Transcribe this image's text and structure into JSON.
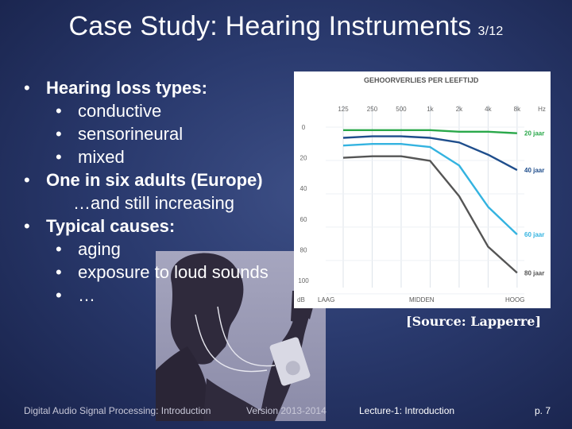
{
  "slide": {
    "title": "Case Study: Hearing Instruments",
    "slide_number": "3/12",
    "bullets": [
      {
        "level": 1,
        "text": "Hearing loss types:",
        "bold": true
      },
      {
        "level": 2,
        "text": "conductive"
      },
      {
        "level": 2,
        "text": "sensorineural"
      },
      {
        "level": 2,
        "text": "mixed"
      },
      {
        "level": 1,
        "text": "One in six adults (Europe)",
        "bold": true
      },
      {
        "level": 3,
        "text": "…and still increasing"
      },
      {
        "level": 1,
        "text": "Typical causes:",
        "bold": true
      },
      {
        "level": 2,
        "text": "aging"
      },
      {
        "level": 2,
        "text": "exposure to loud sounds"
      },
      {
        "level": 2,
        "text": "…"
      }
    ],
    "source": "[Source: Lapperre]"
  },
  "chart_data": {
    "type": "line",
    "title": "GEHOORVERLIES PER LEEFTIJD",
    "x": [
      125,
      250,
      500,
      1000,
      2000,
      4000,
      8000
    ],
    "x_tick_labels": [
      "125",
      "250",
      "500",
      "1k",
      "2k",
      "4k",
      "8k"
    ],
    "x_unit": "Hz",
    "y_tick_labels": [
      "0",
      "20",
      "40",
      "60",
      "80",
      "100"
    ],
    "y_unit": "dB",
    "ylim": [
      0,
      100
    ],
    "y_inverted": true,
    "band_labels": [
      "LAAG",
      "MIDDEN",
      "HOOG"
    ],
    "series": [
      {
        "name": "20 jaar",
        "color": "#2aa84a",
        "values": [
          2,
          2,
          2,
          2,
          3,
          3,
          4
        ]
      },
      {
        "name": "40 jaar",
        "color": "#1f4e8c",
        "values": [
          7,
          6,
          6,
          7,
          10,
          18,
          28
        ]
      },
      {
        "name": "60 jaar",
        "color": "#34b3e0",
        "values": [
          12,
          11,
          11,
          13,
          25,
          52,
          70
        ]
      },
      {
        "name": "80 jaar",
        "color": "#555555",
        "values": [
          20,
          19,
          19,
          22,
          45,
          78,
          95
        ]
      }
    ],
    "grid": true
  },
  "footer": {
    "course": "Digital Audio Signal Processing: Introduction",
    "version": "Version 2013-2014",
    "lecture": "Lecture-1: Introduction",
    "page": "p. 7"
  }
}
